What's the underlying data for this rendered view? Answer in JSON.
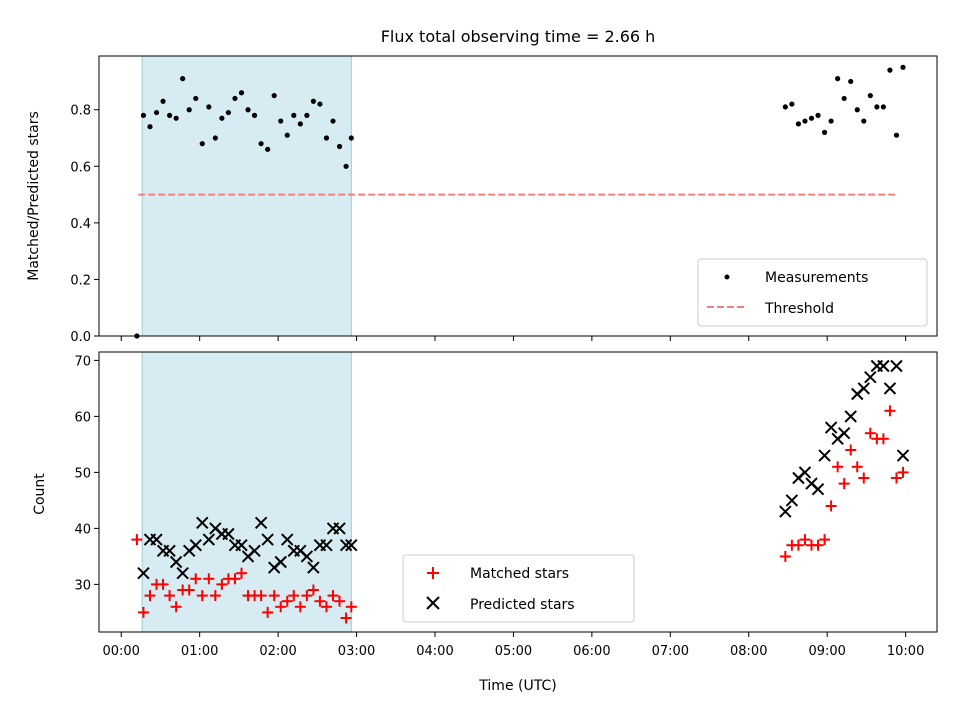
{
  "chart_data": [
    {
      "type": "scatter",
      "title": "Flux total observing time = 2.66 h",
      "ylabel": "Matched/Predicted stars",
      "xlabel": "",
      "ylim": [
        0,
        0.99
      ],
      "xlim": [
        "23:43",
        "10:24"
      ],
      "yticks": [
        0.0,
        0.2,
        0.4,
        0.6,
        0.8
      ],
      "ytick_labels": [
        "0.0",
        "0.2",
        "0.4",
        "0.6",
        "0.8"
      ],
      "shaded_region": {
        "x": [
          "00:16",
          "02:56"
        ],
        "color": "#add8e6"
      },
      "legend_position": "lower-right",
      "series": [
        {
          "name": "Measurements",
          "kind": "dots",
          "color": "#000000",
          "x": [
            "00:12",
            "00:17",
            "00:22",
            "00:27",
            "00:32",
            "00:37",
            "00:42",
            "00:47",
            "00:52",
            "00:57",
            "01:02",
            "01:07",
            "01:12",
            "01:17",
            "01:22",
            "01:27",
            "01:32",
            "01:37",
            "01:42",
            "01:47",
            "01:52",
            "01:57",
            "02:02",
            "02:07",
            "02:12",
            "02:17",
            "02:22",
            "02:27",
            "02:32",
            "02:37",
            "02:42",
            "02:47",
            "02:52",
            "02:56",
            "08:28",
            "08:33",
            "08:38",
            "08:43",
            "08:48",
            "08:53",
            "08:58",
            "09:03",
            "09:08",
            "09:13",
            "09:18",
            "09:23",
            "09:28",
            "09:33",
            "09:38",
            "09:43",
            "09:48",
            "09:53",
            "09:58"
          ],
          "y": [
            0.0,
            0.78,
            0.74,
            0.79,
            0.83,
            0.78,
            0.77,
            0.91,
            0.8,
            0.84,
            0.68,
            0.81,
            0.7,
            0.77,
            0.79,
            0.84,
            0.86,
            0.8,
            0.78,
            0.68,
            0.66,
            0.85,
            0.76,
            0.71,
            0.78,
            0.75,
            0.78,
            0.83,
            0.82,
            0.7,
            0.76,
            0.67,
            0.6,
            0.7,
            0.81,
            0.82,
            0.75,
            0.76,
            0.77,
            0.78,
            0.72,
            0.76,
            0.91,
            0.84,
            0.9,
            0.8,
            0.76,
            0.85,
            0.81,
            0.81,
            0.94,
            0.71,
            0.95
          ]
        },
        {
          "name": "Threshold",
          "kind": "dashed-line",
          "color": "#f08080",
          "x": [
            "00:13",
            "09:53"
          ],
          "y": [
            0.5,
            0.5
          ]
        }
      ]
    },
    {
      "type": "scatter",
      "title": "",
      "ylabel": "Count",
      "xlabel": "Time (UTC)",
      "ylim": [
        21.5,
        71.5
      ],
      "xlim": [
        "23:43",
        "10:24"
      ],
      "yticks": [
        30,
        40,
        50,
        60,
        70
      ],
      "ytick_labels": [
        "30",
        "40",
        "50",
        "60",
        "70"
      ],
      "xticks": [
        "00:00",
        "01:00",
        "02:00",
        "03:00",
        "04:00",
        "05:00",
        "06:00",
        "07:00",
        "08:00",
        "09:00",
        "10:00"
      ],
      "shaded_region": {
        "x": [
          "00:16",
          "02:56"
        ],
        "color": "#add8e6"
      },
      "legend_position": "lower-center",
      "series": [
        {
          "name": "Matched stars",
          "kind": "plus",
          "color": "#ff0000",
          "x": [
            "00:12",
            "00:17",
            "00:22",
            "00:27",
            "00:32",
            "00:37",
            "00:42",
            "00:47",
            "00:52",
            "00:57",
            "01:02",
            "01:07",
            "01:12",
            "01:17",
            "01:22",
            "01:27",
            "01:32",
            "01:37",
            "01:42",
            "01:47",
            "01:52",
            "01:57",
            "02:02",
            "02:07",
            "02:12",
            "02:17",
            "02:22",
            "02:27",
            "02:32",
            "02:37",
            "02:42",
            "02:47",
            "02:52",
            "02:56",
            "08:28",
            "08:33",
            "08:38",
            "08:43",
            "08:48",
            "08:53",
            "08:58",
            "09:03",
            "09:08",
            "09:13",
            "09:18",
            "09:23",
            "09:28",
            "09:33",
            "09:38",
            "09:43",
            "09:48",
            "09:53",
            "09:58"
          ],
          "y": [
            38,
            25,
            28,
            30,
            30,
            28,
            26,
            29,
            29,
            31,
            28,
            31,
            28,
            30,
            31,
            31,
            32,
            28,
            28,
            28,
            25,
            28,
            26,
            27,
            28,
            26,
            28,
            29,
            27,
            26,
            28,
            27,
            24,
            26,
            35,
            37,
            37,
            38,
            37,
            37,
            38,
            44,
            51,
            48,
            54,
            51,
            49,
            57,
            56,
            56,
            61,
            49,
            50
          ]
        },
        {
          "name": "Predicted stars",
          "kind": "x",
          "color": "#000000",
          "x": [
            "00:17",
            "00:22",
            "00:27",
            "00:32",
            "00:37",
            "00:42",
            "00:47",
            "00:52",
            "00:57",
            "01:02",
            "01:07",
            "01:12",
            "01:17",
            "01:22",
            "01:27",
            "01:32",
            "01:37",
            "01:42",
            "01:47",
            "01:52",
            "01:57",
            "02:02",
            "02:07",
            "02:12",
            "02:17",
            "02:22",
            "02:27",
            "02:32",
            "02:37",
            "02:42",
            "02:47",
            "02:52",
            "02:56",
            "08:28",
            "08:33",
            "08:38",
            "08:43",
            "08:48",
            "08:53",
            "08:58",
            "09:03",
            "09:08",
            "09:13",
            "09:18",
            "09:23",
            "09:28",
            "09:33",
            "09:38",
            "09:43",
            "09:48",
            "09:53",
            "09:58"
          ],
          "y": [
            32,
            38,
            38,
            36,
            36,
            34,
            32,
            36,
            37,
            41,
            38,
            40,
            39,
            39,
            37,
            37,
            35,
            36,
            41,
            38,
            33,
            34,
            38,
            36,
            36,
            35,
            33,
            37,
            37,
            40,
            40,
            37,
            37,
            43,
            45,
            49,
            50,
            48,
            47,
            53,
            58,
            56,
            57,
            60,
            64,
            65,
            67,
            69,
            69,
            65,
            69,
            53
          ]
        }
      ]
    }
  ]
}
